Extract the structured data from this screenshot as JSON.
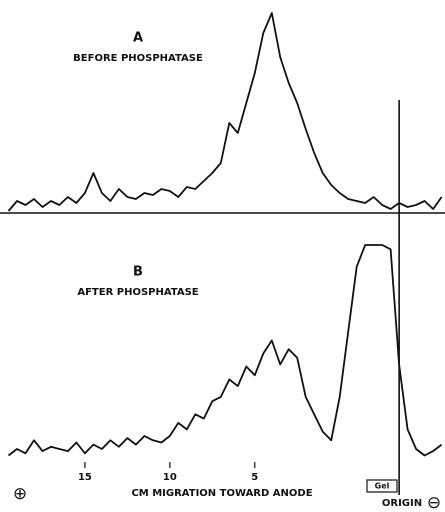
{
  "chart_data": [
    {
      "type": "line",
      "title": "A",
      "subtitle": "BEFORE PHOSPHATASE",
      "x": [
        19.5,
        19,
        18.5,
        18,
        17.5,
        17,
        16.5,
        16,
        15.5,
        15,
        14.5,
        14,
        13.5,
        13,
        12.5,
        12,
        11.5,
        11,
        10.5,
        10,
        9.5,
        9,
        8.5,
        8,
        7.5,
        7,
        6.5,
        6,
        5.5,
        5,
        4.5,
        4,
        3.5,
        3,
        2.5,
        2,
        1.5,
        1,
        0.5,
        0,
        -0.5,
        -1,
        -1.5,
        -2,
        -2.5,
        -3,
        -3.5,
        -4,
        -4.5,
        -5,
        -5.5,
        -6
      ],
      "series": [
        {
          "color": "#111111",
          "values": [
            1,
            6,
            4,
            7,
            3,
            6,
            4,
            8,
            5,
            10,
            20,
            10,
            6,
            12,
            8,
            7,
            10,
            9,
            12,
            11,
            8,
            13,
            12,
            16,
            20,
            25,
            45,
            40,
            55,
            70,
            90,
            100,
            78,
            65,
            55,
            42,
            30,
            20,
            14,
            10,
            7,
            6,
            5,
            8,
            4,
            2,
            5,
            3,
            4,
            6,
            2,
            8
          ]
        }
      ],
      "xlim": [
        20,
        -6.2
      ],
      "ylim": [
        0,
        100
      ]
    },
    {
      "type": "line",
      "title": "B",
      "subtitle": "AFTER PHOSPHATASE",
      "x": [
        19.5,
        19,
        18.5,
        18,
        17.5,
        17,
        16.5,
        16,
        15.5,
        15,
        14.5,
        14,
        13.5,
        13,
        12.5,
        12,
        11.5,
        11,
        10.5,
        10,
        9.5,
        9,
        8.5,
        8,
        7.5,
        7,
        6.5,
        6,
        5.5,
        5,
        4.5,
        4,
        3.5,
        3,
        2.5,
        2,
        1.5,
        1,
        0.5,
        0,
        -0.5,
        -1,
        -1.5,
        -2,
        -2.5,
        -3,
        -3.5,
        -4,
        -4.5,
        -5,
        -5.5,
        -6
      ],
      "series": [
        {
          "color": "#111111",
          "values": [
            3,
            6,
            4,
            10,
            5,
            7,
            6,
            5,
            9,
            4,
            8,
            6,
            10,
            7,
            11,
            8,
            12,
            10,
            9,
            12,
            18,
            15,
            22,
            20,
            28,
            30,
            38,
            35,
            44,
            40,
            50,
            56,
            45,
            52,
            48,
            30,
            22,
            14,
            10,
            30,
            60,
            90,
            100,
            100,
            100,
            98,
            45,
            15,
            6,
            3,
            5,
            8
          ]
        }
      ],
      "xlim": [
        20,
        -6.2
      ],
      "ylim": [
        0,
        100
      ],
      "xticks": [
        15,
        10,
        5
      ],
      "xlabel": "CM MIGRATION TOWARD ANODE",
      "origin_x": -3.5,
      "annotations": [
        "⊕",
        "Gel",
        "ORIGIN",
        "⊖"
      ]
    }
  ]
}
